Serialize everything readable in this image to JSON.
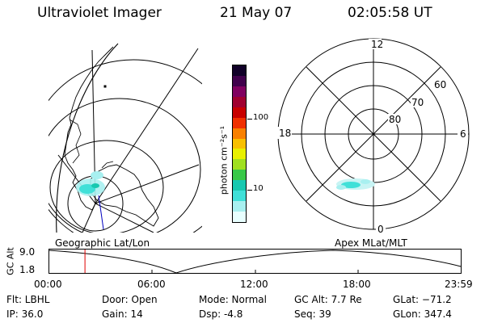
{
  "header": {
    "title": "Ultraviolet Imager",
    "date": "21 May 07",
    "time": "02:05:58 UT"
  },
  "colorbar": {
    "unit_label": "photon cm⁻²s⁻¹",
    "ticks": [
      "100",
      "10"
    ],
    "colors": [
      "#e8ffff",
      "#a8f0f0",
      "#40e0d8",
      "#18c8b0",
      "#38c848",
      "#a0e020",
      "#e8f000",
      "#f8c000",
      "#f88000",
      "#f03000",
      "#c80000",
      "#a00030",
      "#800060",
      "#40004c",
      "#100028"
    ]
  },
  "geo_panel": {
    "label": "Geographic Lat/Lon"
  },
  "polar_panel": {
    "label": "Apex MLat/MLT",
    "mlt_labels": {
      "top": "12",
      "left": "18",
      "right": "6",
      "bottom": "0"
    },
    "lat_labels": [
      "60",
      "70",
      "80"
    ]
  },
  "timeline": {
    "y_label": "GC Alt",
    "y_ticks": [
      "9.0",
      "1.8"
    ],
    "x_ticks": [
      "00:00",
      "06:00",
      "12:00",
      "18:00",
      "23:59"
    ],
    "marker_time": "02:05:58",
    "marker_color": "#e00000"
  },
  "info": {
    "flt": "Flt:  LBHL",
    "ip": "IP:  36.0",
    "door": "Door:  Open",
    "gain": "Gain:  14",
    "mode": "Mode:  Normal",
    "dsp": "Dsp:     -4.8",
    "gc_alt": "GC Alt:  7.7 Re",
    "seq": "Seq:  39",
    "glat": "GLat:  −71.2",
    "glon": "GLon:  347.4"
  }
}
